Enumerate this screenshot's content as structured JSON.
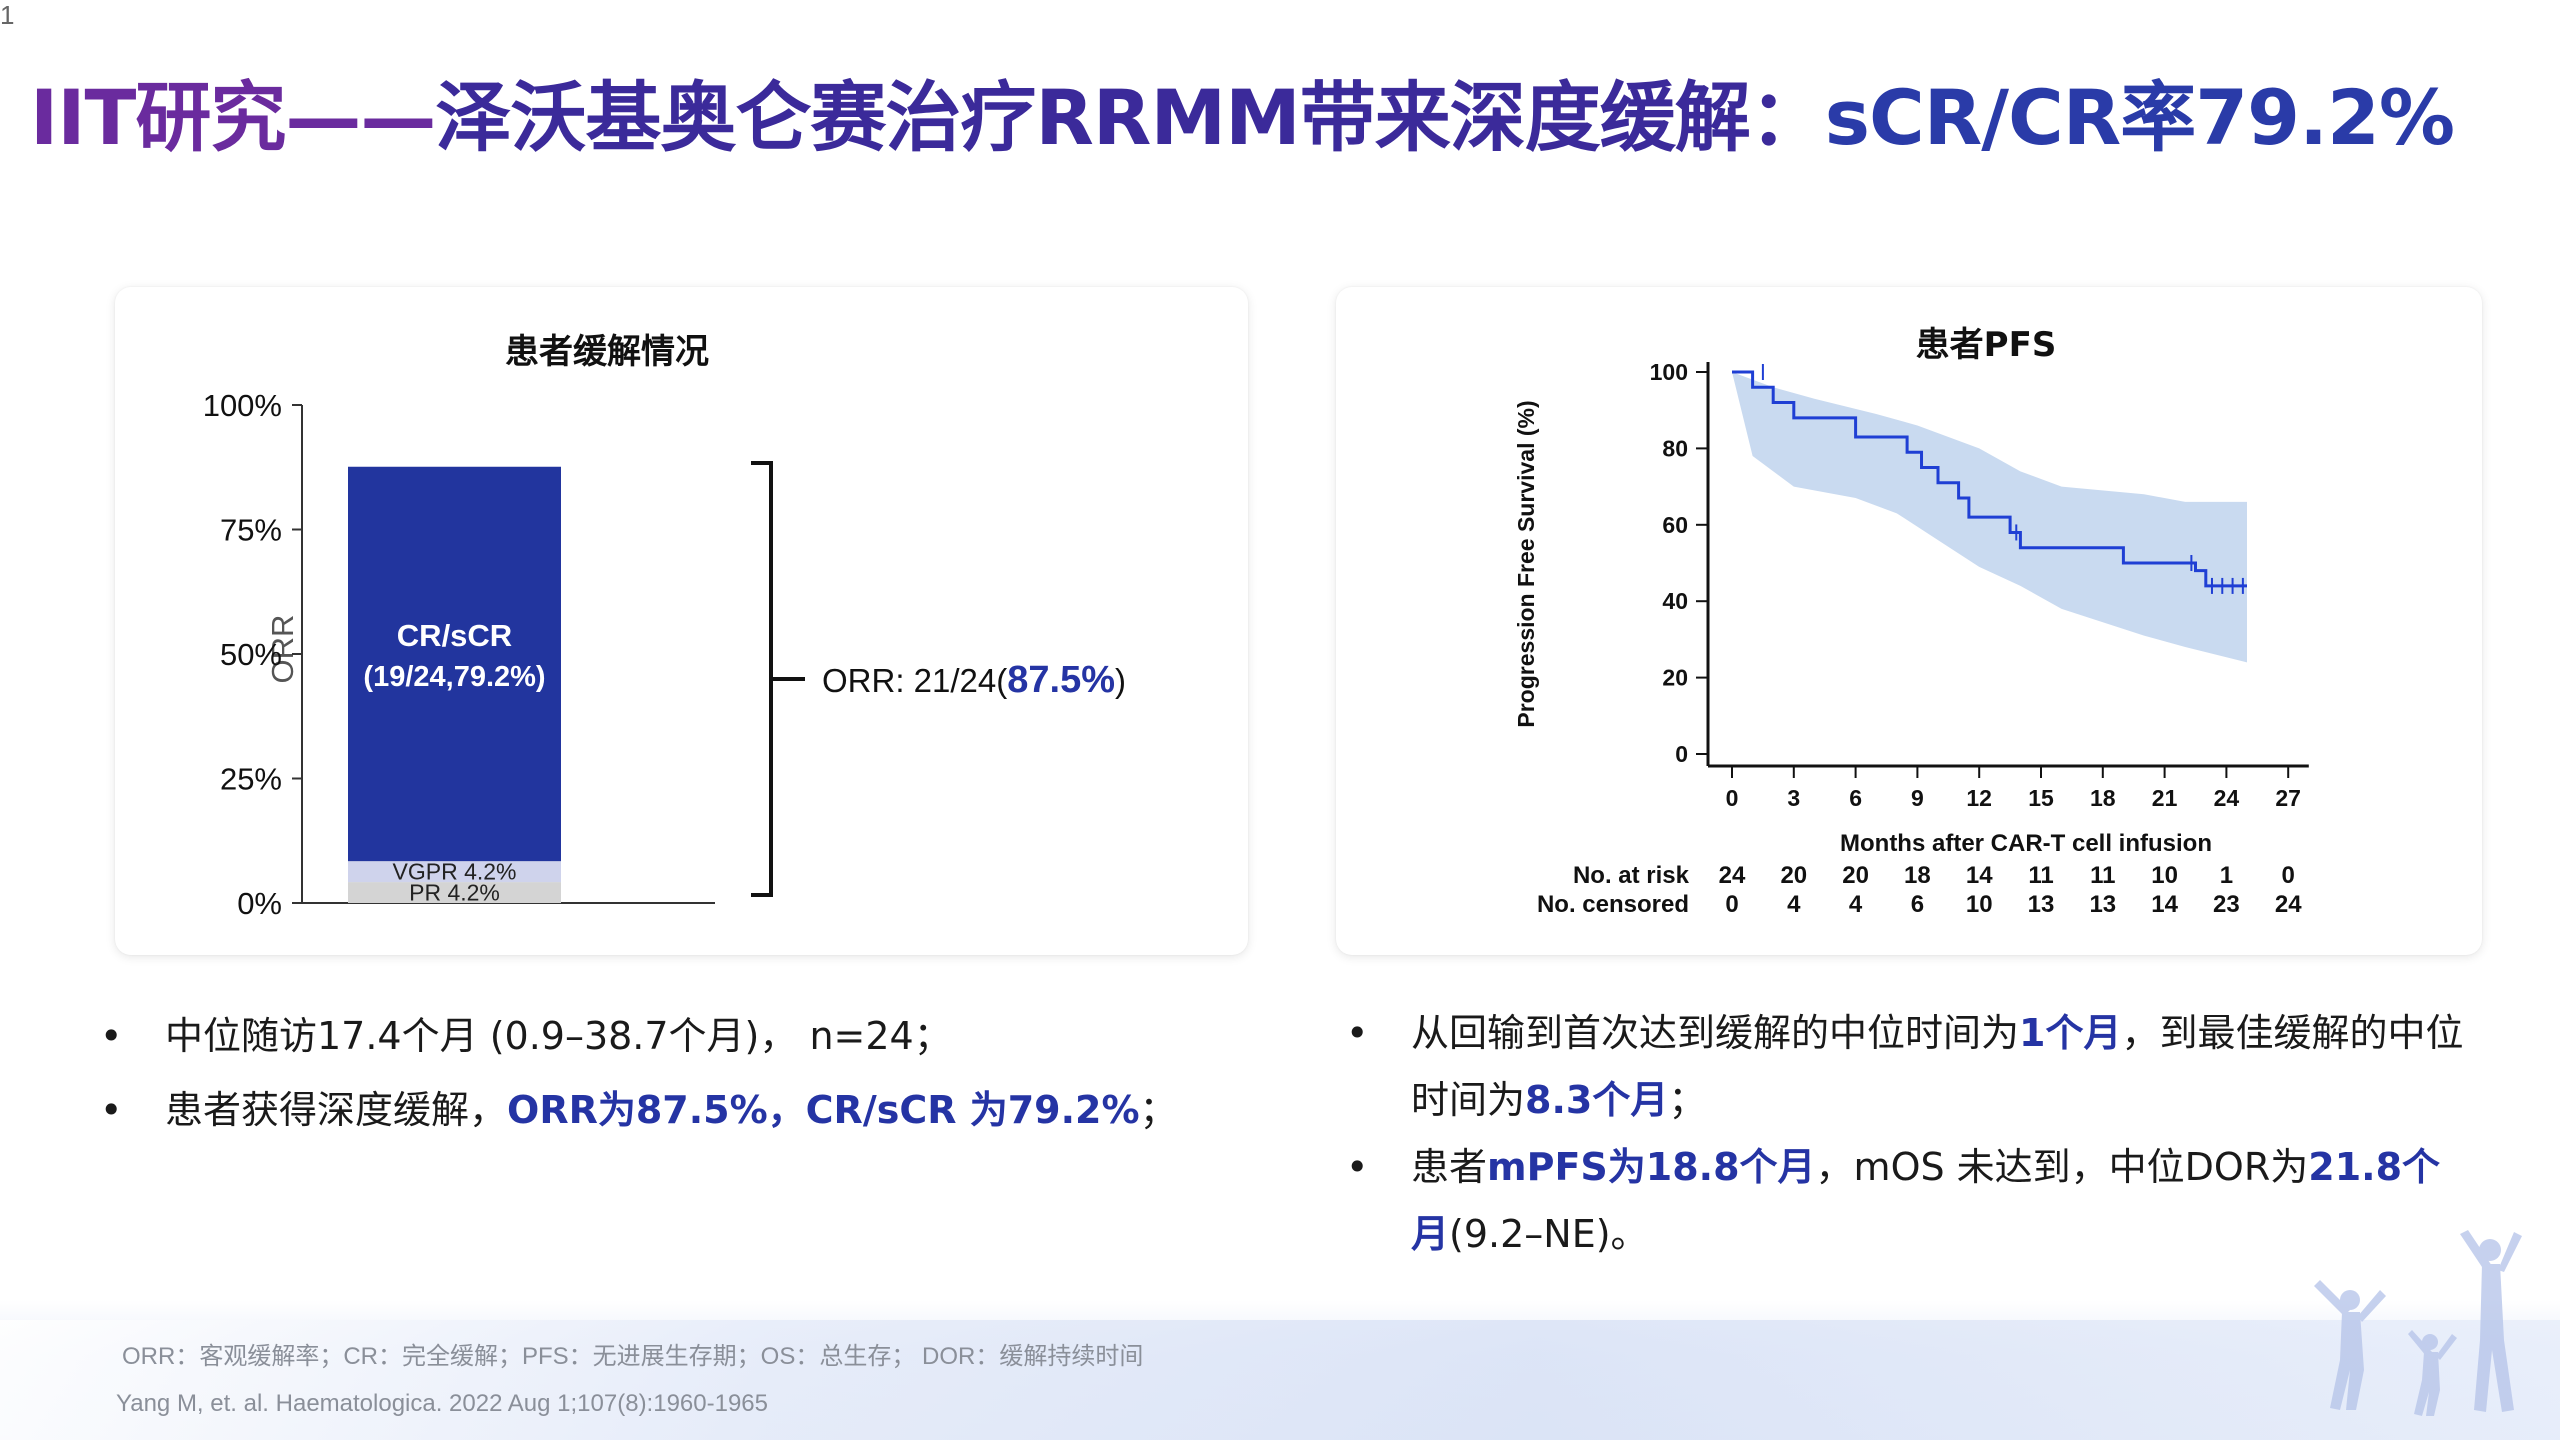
{
  "slide": {
    "title_part1": "IIT研究——",
    "title_part2": "泽沃基奥仑赛治疗RRMM带来深度缓解：",
    "title_part3": "sCR/CR率79.2%",
    "page_number": "1"
  },
  "colors": {
    "title_purple": "#6a2b9e",
    "brand_blue": "#2534a4",
    "bar_cr": "#22359e",
    "bar_vgpr": "#cfd3ec",
    "bar_pr": "#d4d4d4",
    "pfs_line": "#1f3fd4",
    "pfs_ci": "#c9daf0"
  },
  "chart_data": [
    {
      "type": "bar",
      "title": "患者缓解情况",
      "ylabel": "ORR",
      "yticks": [
        "100%",
        "75%",
        "50%",
        "25%",
        "0%"
      ],
      "ylim": [
        0,
        100
      ],
      "stacked": true,
      "segments": [
        {
          "name": "PR",
          "label": "PR 4.2%",
          "value": 4.2
        },
        {
          "name": "VGPR",
          "label": "VGPR 4.2%",
          "value": 4.2
        },
        {
          "name": "CR/sCR",
          "label_line1": "CR/sCR",
          "label_line2": "(19/24,79.2%)",
          "value": 79.2
        }
      ],
      "annotation_prefix": "ORR: 21/24(",
      "annotation_value": "87.5%",
      "annotation_suffix": ")"
    },
    {
      "type": "line",
      "title": "患者PFS",
      "xlabel": "Months after CAR-T cell infusion",
      "ylabel": "Progression Free Survival (%)",
      "xticks": [
        "0",
        "3",
        "6",
        "9",
        "12",
        "15",
        "18",
        "21",
        "24",
        "27"
      ],
      "yticks": [
        "100",
        "80",
        "60",
        "40",
        "20",
        "0"
      ],
      "xlim": [
        0,
        28
      ],
      "ylim": [
        0,
        100
      ],
      "km_steps": [
        [
          0,
          100
        ],
        [
          1,
          100
        ],
        [
          1,
          96
        ],
        [
          2,
          96
        ],
        [
          2,
          92
        ],
        [
          3,
          92
        ],
        [
          3,
          88
        ],
        [
          6,
          88
        ],
        [
          6,
          83
        ],
        [
          8.5,
          83
        ],
        [
          8.5,
          79
        ],
        [
          9.2,
          79
        ],
        [
          9.2,
          75
        ],
        [
          10,
          75
        ],
        [
          10,
          71
        ],
        [
          11,
          71
        ],
        [
          11,
          67
        ],
        [
          11.5,
          67
        ],
        [
          11.5,
          62
        ],
        [
          13.5,
          62
        ],
        [
          13.5,
          58
        ],
        [
          14,
          58
        ],
        [
          14,
          54
        ],
        [
          19,
          54
        ],
        [
          19,
          50
        ],
        [
          22.5,
          50
        ],
        [
          22.5,
          48
        ],
        [
          23,
          48
        ],
        [
          23,
          44
        ],
        [
          25,
          44
        ]
      ],
      "censor_marks": [
        [
          1.5,
          100
        ],
        [
          13.8,
          58
        ],
        [
          22.3,
          50
        ],
        [
          23.3,
          44
        ],
        [
          23.8,
          44
        ],
        [
          24.3,
          44
        ],
        [
          24.8,
          44
        ]
      ],
      "ci_upper": [
        [
          0,
          100
        ],
        [
          2,
          96
        ],
        [
          4,
          93
        ],
        [
          7,
          89
        ],
        [
          9,
          86
        ],
        [
          10,
          84
        ],
        [
          12,
          80
        ],
        [
          14,
          74
        ],
        [
          16,
          70
        ],
        [
          20,
          68
        ],
        [
          22,
          66
        ],
        [
          25,
          66
        ]
      ],
      "ci_lower": [
        [
          0,
          100
        ],
        [
          1,
          78
        ],
        [
          3,
          70
        ],
        [
          6,
          67
        ],
        [
          8,
          63
        ],
        [
          10,
          56
        ],
        [
          12,
          49
        ],
        [
          14,
          44
        ],
        [
          16,
          38
        ],
        [
          20,
          31
        ],
        [
          22,
          28
        ],
        [
          25,
          24
        ]
      ],
      "risk_table": {
        "at_risk_label": "No. at risk",
        "at_risk": [
          "24",
          "20",
          "20",
          "18",
          "14",
          "11",
          "11",
          "10",
          "1",
          "0"
        ],
        "censored_label": "No. censored",
        "censored": [
          "0",
          "4",
          "4",
          "6",
          "10",
          "13",
          "13",
          "14",
          "23",
          "24"
        ]
      }
    }
  ],
  "bullets_left": [
    {
      "text": "中位随访17.4个月 (0.9–38.7个月)， n=24；"
    },
    {
      "prefix": "患者获得深度缓解，",
      "highlight": "ORR为87.5%，CR/sCR 为79.2%",
      "suffix": "；"
    }
  ],
  "bullets_right": [
    {
      "a": "从回输到首次达到缓解的中位时间为",
      "b": "1个月",
      "c": "，到最佳缓解的中位时间为",
      "d": "8.3个月",
      "e": "；"
    },
    {
      "a": "患者",
      "b": "mPFS为18.8个月",
      "c": "，mOS 未达到，中位DOR为",
      "d": "21.8个月",
      "e": "(9.2–NE)。"
    }
  ],
  "footer": {
    "abbreviations": "ORR：客观缓解率；CR：完全缓解；PFS：无进展生存期；OS：总生存； DOR：缓解持续时间",
    "reference": "Yang M, et. al. Haematologica. 2022 Aug 1;107(8):1960-1965"
  }
}
